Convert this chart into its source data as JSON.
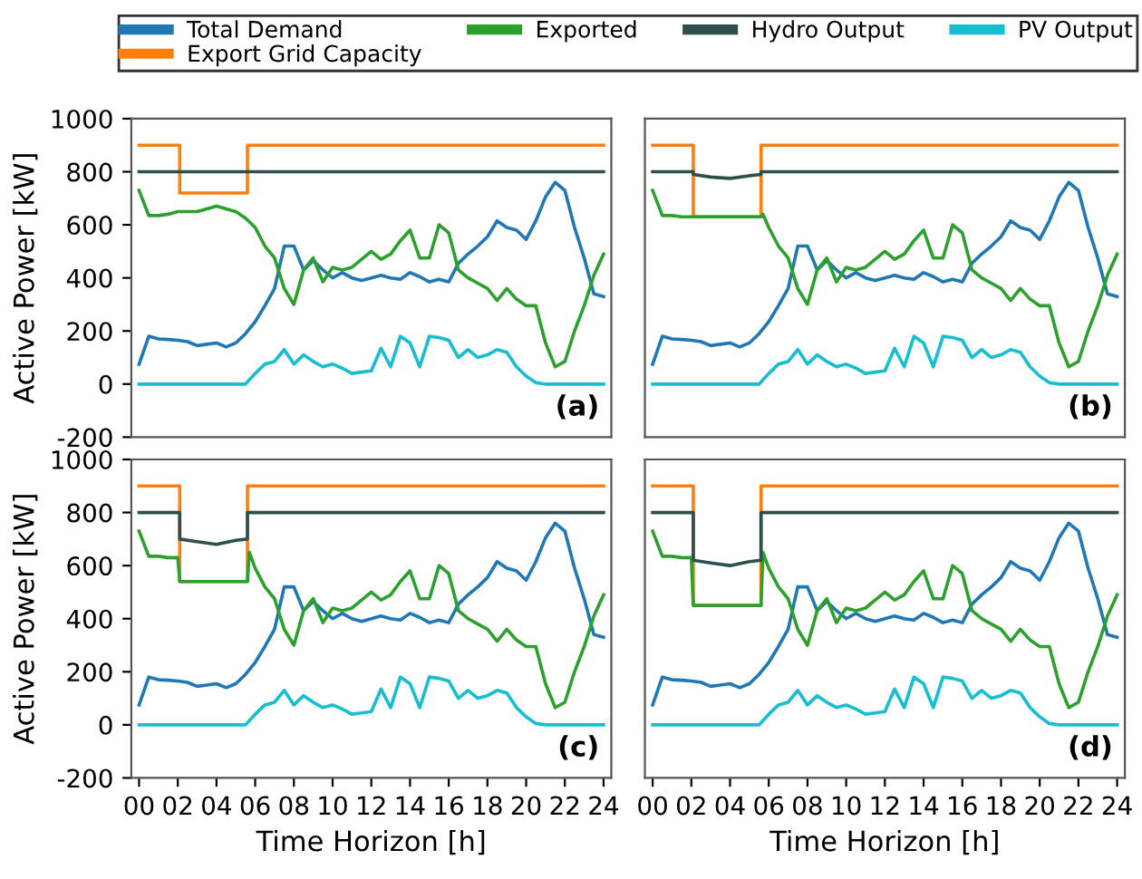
{
  "chart_data": [
    {
      "type": "line",
      "annotations": [
        "(a)"
      ],
      "ylabel": "Active Power [kW]",
      "xlim": [
        -0.4,
        24.4
      ],
      "ylim": [
        -200,
        1000
      ],
      "yticks": [
        -200,
        0,
        200,
        400,
        600,
        800,
        1000
      ],
      "tick_labels": "y",
      "legend": "top",
      "grid": false,
      "x": [
        0,
        0.5,
        1,
        1.5,
        2,
        2.5,
        3,
        3.5,
        4,
        4.5,
        5,
        5.5,
        6,
        6.5,
        7,
        7.5,
        8,
        8.5,
        9,
        9.5,
        10,
        10.5,
        11,
        11.5,
        12,
        12.5,
        13,
        13.5,
        14,
        14.5,
        15,
        15.5,
        16,
        16.5,
        17,
        17.5,
        18,
        18.5,
        19,
        19.5,
        20,
        20.5,
        21,
        21.5,
        22,
        22.5,
        23,
        23.5,
        24
      ],
      "series": [
        {
          "name": "Total Demand",
          "color": "#1f77b4",
          "values": [
            75,
            180,
            170,
            168,
            165,
            160,
            145,
            150,
            155,
            140,
            155,
            190,
            235,
            295,
            360,
            520,
            520,
            430,
            465,
            430,
            400,
            420,
            400,
            390,
            400,
            410,
            400,
            395,
            420,
            405,
            385,
            395,
            385,
            455,
            490,
            520,
            555,
            615,
            590,
            580,
            545,
            615,
            705,
            760,
            730,
            590,
            475,
            340,
            330
          ]
        },
        {
          "name": "Export Grid Capacity",
          "color": "#ff7f0e",
          "x": [
            0,
            2.1,
            2.1,
            5.6,
            5.6,
            24
          ],
          "values": [
            900,
            900,
            720,
            720,
            900,
            900
          ]
        },
        {
          "name": "Exported",
          "color": "#2ca02c",
          "values": [
            730,
            635,
            635,
            640,
            650,
            650,
            650,
            660,
            670,
            660,
            650,
            625,
            590,
            520,
            475,
            360,
            300,
            430,
            475,
            385,
            440,
            430,
            440,
            470,
            500,
            470,
            490,
            540,
            580,
            475,
            475,
            600,
            570,
            430,
            400,
            380,
            360,
            315,
            360,
            320,
            295,
            295,
            155,
            65,
            85,
            200,
            295,
            410,
            490
          ]
        },
        {
          "name": "Hydro Output",
          "color": "#2f4f4f",
          "x": [
            0,
            24
          ],
          "values": [
            800,
            800
          ]
        },
        {
          "name": "PV Output",
          "color": "#17becf",
          "values": [
            0,
            0,
            0,
            0,
            0,
            0,
            0,
            0,
            0,
            0,
            0,
            0,
            40,
            75,
            85,
            130,
            75,
            110,
            85,
            65,
            75,
            60,
            40,
            45,
            50,
            135,
            65,
            180,
            155,
            65,
            180,
            175,
            165,
            100,
            130,
            100,
            110,
            130,
            120,
            65,
            30,
            5,
            0,
            0,
            0,
            0,
            0,
            0,
            0
          ]
        }
      ]
    },
    {
      "type": "line",
      "annotations": [
        "(b)"
      ],
      "xlim": [
        -0.4,
        24.4
      ],
      "ylim": [
        -200,
        1000
      ],
      "tick_labels": false,
      "grid": false,
      "x": [
        0,
        0.5,
        1,
        1.5,
        2,
        2.5,
        3,
        3.5,
        4,
        4.5,
        5,
        5.5,
        6,
        6.5,
        7,
        7.5,
        8,
        8.5,
        9,
        9.5,
        10,
        10.5,
        11,
        11.5,
        12,
        12.5,
        13,
        13.5,
        14,
        14.5,
        15,
        15.5,
        16,
        16.5,
        17,
        17.5,
        18,
        18.5,
        19,
        19.5,
        20,
        20.5,
        21,
        21.5,
        22,
        22.5,
        23,
        23.5,
        24
      ],
      "series": [
        {
          "color": "#1f77b4",
          "values": [
            75,
            180,
            170,
            168,
            165,
            160,
            145,
            150,
            155,
            140,
            155,
            190,
            235,
            295,
            360,
            520,
            520,
            430,
            465,
            430,
            400,
            420,
            400,
            390,
            400,
            410,
            400,
            395,
            420,
            405,
            385,
            395,
            385,
            455,
            490,
            520,
            555,
            615,
            590,
            580,
            545,
            615,
            705,
            760,
            730,
            590,
            475,
            340,
            330
          ]
        },
        {
          "color": "#ff7f0e",
          "x": [
            0,
            2.1,
            2.1,
            5.6,
            5.6,
            24
          ],
          "values": [
            900,
            900,
            630,
            630,
            900,
            900
          ]
        },
        {
          "color": "#2ca02c",
          "x": [
            0,
            0.5,
            1,
            1.5,
            2,
            2.1,
            5.6,
            5.7,
            6,
            6.5,
            7,
            7.5,
            8,
            8.5,
            9,
            9.5,
            10,
            10.5,
            11,
            11.5,
            12,
            12.5,
            13,
            13.5,
            14,
            14.5,
            15,
            15.5,
            16,
            16.5,
            17,
            17.5,
            18,
            18.5,
            19,
            19.5,
            20,
            20.5,
            21,
            21.5,
            22,
            22.5,
            23,
            23.5,
            24
          ],
          "values": [
            730,
            635,
            635,
            630,
            630,
            630,
            630,
            640,
            590,
            520,
            475,
            360,
            300,
            430,
            475,
            385,
            440,
            430,
            440,
            470,
            500,
            470,
            490,
            540,
            580,
            475,
            475,
            600,
            570,
            430,
            400,
            380,
            360,
            315,
            360,
            320,
            295,
            295,
            155,
            65,
            85,
            200,
            295,
            410,
            490
          ]
        },
        {
          "color": "#2f4f4f",
          "x": [
            0,
            2.1,
            2.1,
            3,
            4,
            5,
            5.6,
            5.6,
            24
          ],
          "values": [
            800,
            800,
            790,
            780,
            775,
            785,
            790,
            800,
            800
          ]
        },
        {
          "color": "#17becf",
          "values": [
            0,
            0,
            0,
            0,
            0,
            0,
            0,
            0,
            0,
            0,
            0,
            0,
            40,
            75,
            85,
            130,
            75,
            110,
            85,
            65,
            75,
            60,
            40,
            45,
            50,
            135,
            65,
            180,
            155,
            65,
            180,
            175,
            165,
            100,
            130,
            100,
            110,
            130,
            120,
            65,
            30,
            5,
            0,
            0,
            0,
            0,
            0,
            0,
            0
          ]
        }
      ]
    },
    {
      "type": "line",
      "annotations": [
        "(c)"
      ],
      "xlabel": "Time Horizon [h]",
      "ylabel": "Active Power [kW]",
      "xlim": [
        -0.4,
        24.4
      ],
      "ylim": [
        -200,
        1000
      ],
      "yticks": [
        -200,
        0,
        200,
        400,
        600,
        800,
        1000
      ],
      "xticks": [
        {
          "value": 0,
          "label": "00"
        },
        {
          "value": 2,
          "label": "02"
        },
        {
          "value": 4,
          "label": "04"
        },
        {
          "value": 6,
          "label": "06"
        },
        {
          "value": 8,
          "label": "08"
        },
        {
          "value": 10,
          "label": "10"
        },
        {
          "value": 12,
          "label": "12"
        },
        {
          "value": 14,
          "label": "14"
        },
        {
          "value": 16,
          "label": "16"
        },
        {
          "value": 18,
          "label": "18"
        },
        {
          "value": 20,
          "label": "20"
        },
        {
          "value": 22,
          "label": "22"
        },
        {
          "value": 24,
          "label": "24"
        }
      ],
      "grid": false,
      "x": [
        0,
        0.5,
        1,
        1.5,
        2,
        2.5,
        3,
        3.5,
        4,
        4.5,
        5,
        5.5,
        6,
        6.5,
        7,
        7.5,
        8,
        8.5,
        9,
        9.5,
        10,
        10.5,
        11,
        11.5,
        12,
        12.5,
        13,
        13.5,
        14,
        14.5,
        15,
        15.5,
        16,
        16.5,
        17,
        17.5,
        18,
        18.5,
        19,
        19.5,
        20,
        20.5,
        21,
        21.5,
        22,
        22.5,
        23,
        23.5,
        24
      ],
      "series": [
        {
          "color": "#1f77b4",
          "values": [
            75,
            180,
            170,
            168,
            165,
            160,
            145,
            150,
            155,
            140,
            155,
            190,
            235,
            295,
            360,
            520,
            520,
            430,
            465,
            430,
            400,
            420,
            400,
            390,
            400,
            410,
            400,
            395,
            420,
            405,
            385,
            395,
            385,
            455,
            490,
            520,
            555,
            615,
            590,
            580,
            545,
            615,
            705,
            760,
            730,
            590,
            475,
            340,
            330
          ]
        },
        {
          "color": "#ff7f0e",
          "x": [
            0,
            2.1,
            2.1,
            5.6,
            5.6,
            24
          ],
          "values": [
            900,
            900,
            540,
            540,
            900,
            900
          ]
        },
        {
          "color": "#2ca02c",
          "x": [
            0,
            0.5,
            1,
            1.5,
            2,
            2.1,
            5.6,
            5.7,
            6,
            6.5,
            7,
            7.5,
            8,
            8.5,
            9,
            9.5,
            10,
            10.5,
            11,
            11.5,
            12,
            12.5,
            13,
            13.5,
            14,
            14.5,
            15,
            15.5,
            16,
            16.5,
            17,
            17.5,
            18,
            18.5,
            19,
            19.5,
            20,
            20.5,
            21,
            21.5,
            22,
            22.5,
            23,
            23.5,
            24
          ],
          "values": [
            730,
            635,
            635,
            630,
            630,
            540,
            540,
            650,
            590,
            520,
            475,
            360,
            300,
            430,
            475,
            385,
            440,
            430,
            440,
            470,
            500,
            470,
            490,
            540,
            580,
            475,
            475,
            600,
            570,
            430,
            400,
            380,
            360,
            315,
            360,
            320,
            295,
            295,
            155,
            65,
            85,
            200,
            295,
            410,
            490
          ]
        },
        {
          "color": "#2f4f4f",
          "x": [
            0,
            2.1,
            2.1,
            3,
            4,
            5,
            5.6,
            5.6,
            24
          ],
          "values": [
            800,
            800,
            700,
            690,
            680,
            695,
            700,
            800,
            800
          ]
        },
        {
          "color": "#17becf",
          "values": [
            0,
            0,
            0,
            0,
            0,
            0,
            0,
            0,
            0,
            0,
            0,
            0,
            40,
            75,
            85,
            130,
            75,
            110,
            85,
            65,
            75,
            60,
            40,
            45,
            50,
            135,
            65,
            180,
            155,
            65,
            180,
            175,
            165,
            100,
            130,
            100,
            110,
            130,
            120,
            65,
            30,
            5,
            0,
            0,
            0,
            0,
            0,
            0,
            0
          ]
        }
      ]
    },
    {
      "type": "line",
      "annotations": [
        "(d)"
      ],
      "xlabel": "Time Horizon [h]",
      "xlim": [
        -0.4,
        24.4
      ],
      "ylim": [
        -200,
        1000
      ],
      "xticks": [
        {
          "value": 0,
          "label": "00"
        },
        {
          "value": 2,
          "label": "02"
        },
        {
          "value": 4,
          "label": "04"
        },
        {
          "value": 6,
          "label": "06"
        },
        {
          "value": 8,
          "label": "08"
        },
        {
          "value": 10,
          "label": "10"
        },
        {
          "value": 12,
          "label": "12"
        },
        {
          "value": 14,
          "label": "14"
        },
        {
          "value": 16,
          "label": "16"
        },
        {
          "value": 18,
          "label": "18"
        },
        {
          "value": 20,
          "label": "20"
        },
        {
          "value": 22,
          "label": "22"
        },
        {
          "value": 24,
          "label": "24"
        }
      ],
      "tick_labels": "x",
      "grid": false,
      "x": [
        0,
        0.5,
        1,
        1.5,
        2,
        2.5,
        3,
        3.5,
        4,
        4.5,
        5,
        5.5,
        6,
        6.5,
        7,
        7.5,
        8,
        8.5,
        9,
        9.5,
        10,
        10.5,
        11,
        11.5,
        12,
        12.5,
        13,
        13.5,
        14,
        14.5,
        15,
        15.5,
        16,
        16.5,
        17,
        17.5,
        18,
        18.5,
        19,
        19.5,
        20,
        20.5,
        21,
        21.5,
        22,
        22.5,
        23,
        23.5,
        24
      ],
      "series": [
        {
          "color": "#1f77b4",
          "values": [
            75,
            180,
            170,
            168,
            165,
            160,
            145,
            150,
            155,
            140,
            155,
            190,
            235,
            295,
            360,
            520,
            520,
            430,
            465,
            430,
            400,
            420,
            400,
            390,
            400,
            410,
            400,
            395,
            420,
            405,
            385,
            395,
            385,
            455,
            490,
            520,
            555,
            615,
            590,
            580,
            545,
            615,
            705,
            760,
            730,
            590,
            475,
            340,
            330
          ]
        },
        {
          "color": "#ff7f0e",
          "x": [
            0,
            2.1,
            2.1,
            5.6,
            5.6,
            24
          ],
          "values": [
            900,
            900,
            450,
            450,
            900,
            900
          ]
        },
        {
          "color": "#2ca02c",
          "x": [
            0,
            0.5,
            1,
            1.5,
            2,
            2.1,
            5.6,
            5.7,
            6,
            6.5,
            7,
            7.5,
            8,
            8.5,
            9,
            9.5,
            10,
            10.5,
            11,
            11.5,
            12,
            12.5,
            13,
            13.5,
            14,
            14.5,
            15,
            15.5,
            16,
            16.5,
            17,
            17.5,
            18,
            18.5,
            19,
            19.5,
            20,
            20.5,
            21,
            21.5,
            22,
            22.5,
            23,
            23.5,
            24
          ],
          "values": [
            730,
            635,
            635,
            630,
            630,
            450,
            450,
            650,
            590,
            520,
            475,
            360,
            300,
            430,
            475,
            385,
            440,
            430,
            440,
            470,
            500,
            470,
            490,
            540,
            580,
            475,
            475,
            600,
            570,
            430,
            400,
            380,
            360,
            315,
            360,
            320,
            295,
            295,
            155,
            65,
            85,
            200,
            295,
            410,
            490
          ]
        },
        {
          "color": "#2f4f4f",
          "x": [
            0,
            2.1,
            2.1,
            3,
            4,
            5,
            5.6,
            5.6,
            24
          ],
          "values": [
            800,
            800,
            620,
            610,
            600,
            615,
            620,
            800,
            800
          ]
        },
        {
          "color": "#17becf",
          "values": [
            0,
            0,
            0,
            0,
            0,
            0,
            0,
            0,
            0,
            0,
            0,
            0,
            40,
            75,
            85,
            130,
            75,
            110,
            85,
            65,
            75,
            60,
            40,
            45,
            50,
            135,
            65,
            180,
            155,
            65,
            180,
            175,
            165,
            100,
            130,
            100,
            110,
            130,
            120,
            65,
            30,
            5,
            0,
            0,
            0,
            0,
            0,
            0,
            0
          ]
        }
      ]
    }
  ]
}
